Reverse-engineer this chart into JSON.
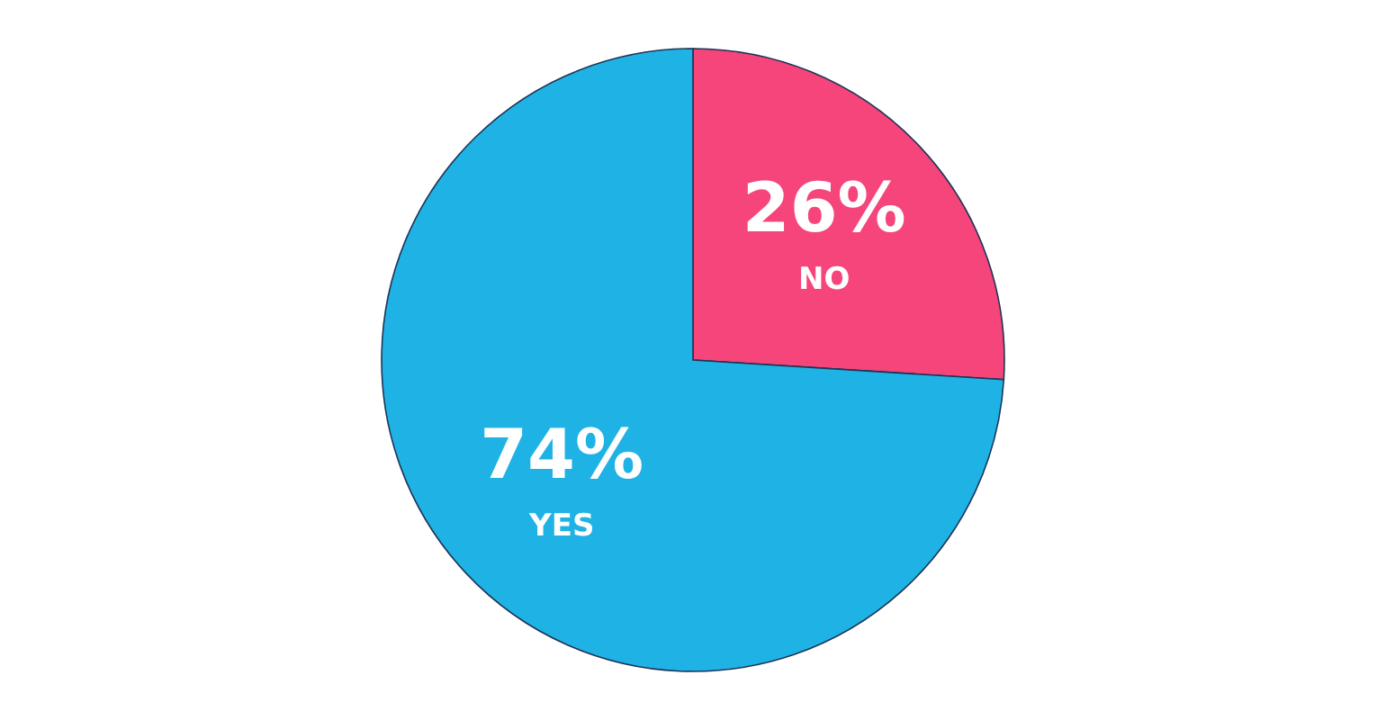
{
  "chart_data": {
    "type": "pie",
    "categories": [
      "NO",
      "YES"
    ],
    "values": [
      26,
      74
    ],
    "colors": [
      "#f5457a",
      "#1fb3e5"
    ],
    "value_labels": [
      "26%",
      "74%"
    ],
    "legend": false
  }
}
